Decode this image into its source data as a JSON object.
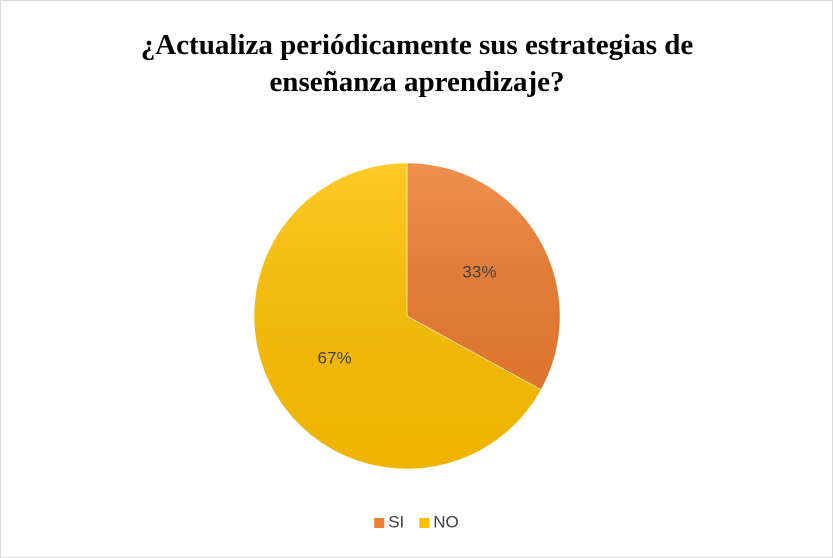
{
  "chart_data": {
    "type": "pie",
    "title": "¿Actualiza periódicamente sus estrategias de enseñanza aprendizaje?",
    "categories": [
      "SI",
      "NO"
    ],
    "values": [
      33,
      67
    ],
    "value_labels": [
      "33%",
      "67%"
    ],
    "colors": [
      "#ED7D31",
      "#FFC000"
    ],
    "legend": "bottom"
  }
}
